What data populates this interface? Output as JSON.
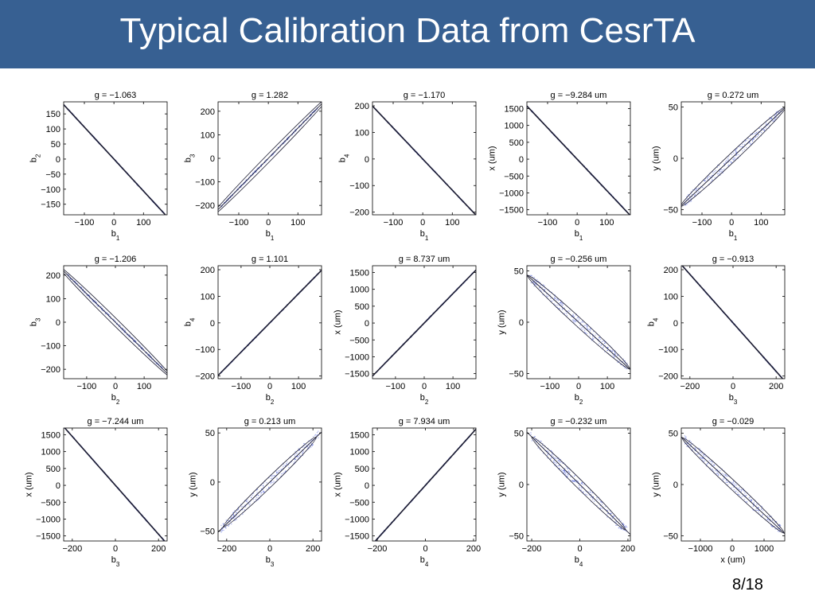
{
  "slide": {
    "title": "Typical Calibration Data from CesrTA",
    "page_number": "8/18",
    "title_bar_color": "#376092"
  },
  "chart_data": [
    {
      "type": "scatter",
      "title": "g = −1.063",
      "xlabel": "b",
      "xlabel_sub": "1",
      "ylabel": "b",
      "ylabel_sub": "2",
      "xlim": [
        -170,
        180
      ],
      "ylim": [
        -185,
        190
      ],
      "xticks": [
        -100,
        0,
        100
      ],
      "xtick_labels": [
        "−100",
        "0",
        "100"
      ],
      "yticks": [
        -150,
        -100,
        -50,
        0,
        50,
        100,
        150
      ],
      "ytick_labels": [
        "−150",
        "−100",
        "−50",
        "0",
        "50",
        "100",
        "150"
      ],
      "fit_line": {
        "x": [
          -170,
          180
        ],
        "y": [
          180.7,
          -191.3
        ]
      },
      "ellipse": null
    },
    {
      "type": "scatter",
      "title": "g = 1.282",
      "xlabel": "b",
      "xlabel_sub": "1",
      "ylabel": "b",
      "ylabel_sub": "3",
      "xlim": [
        -170,
        180
      ],
      "ylim": [
        -240,
        240
      ],
      "xticks": [
        -100,
        0,
        100
      ],
      "xtick_labels": [
        "−100",
        "0",
        "100"
      ],
      "yticks": [
        -200,
        -100,
        0,
        100,
        200
      ],
      "ytick_labels": [
        "−200",
        "−100",
        "0",
        "100",
        "200"
      ],
      "fit_line": {
        "x": [
          -170,
          180
        ],
        "y": [
          -218,
          231
        ]
      },
      "ellipse": {
        "rx": 205,
        "ry": 4
      }
    },
    {
      "type": "scatter",
      "title": "g = −1.170",
      "xlabel": "b",
      "xlabel_sub": "1",
      "ylabel": "b",
      "ylabel_sub": "4",
      "xlim": [
        -170,
        180
      ],
      "ylim": [
        -210,
        215
      ],
      "xticks": [
        -100,
        0,
        100
      ],
      "xtick_labels": [
        "−100",
        "0",
        "100"
      ],
      "yticks": [
        -200,
        -100,
        0,
        100,
        200
      ],
      "ytick_labels": [
        "−200",
        "−100",
        "0",
        "100",
        "200"
      ],
      "fit_line": {
        "x": [
          -170,
          180
        ],
        "y": [
          199,
          -211
        ]
      },
      "ellipse": null
    },
    {
      "type": "scatter",
      "title": "g = −9.284 um",
      "xlabel": "b",
      "xlabel_sub": "1",
      "ylabel": "x (um)",
      "ylabel_sub": "",
      "xlim": [
        -170,
        180
      ],
      "ylim": [
        -1650,
        1700
      ],
      "xticks": [
        -100,
        0,
        100
      ],
      "xtick_labels": [
        "−100",
        "0",
        "100"
      ],
      "yticks": [
        -1500,
        -1000,
        -500,
        0,
        500,
        1000,
        1500
      ],
      "ytick_labels": [
        "−1500",
        "−1000",
        "−500",
        "0",
        "500",
        "1000",
        "1500"
      ],
      "fit_line": {
        "x": [
          -170,
          180
        ],
        "y": [
          1578,
          -1671
        ]
      },
      "ellipse": null
    },
    {
      "type": "scatter",
      "title": "g = 0.272 um",
      "xlabel": "b",
      "xlabel_sub": "1",
      "ylabel": "y (um)",
      "ylabel_sub": "",
      "xlim": [
        -170,
        180
      ],
      "ylim": [
        -55,
        55
      ],
      "xticks": [
        -100,
        0,
        100
      ],
      "xtick_labels": [
        "−100",
        "0",
        "100"
      ],
      "yticks": [
        -50,
        0,
        50
      ],
      "ytick_labels": [
        "−50",
        "0",
        "50"
      ],
      "fit_line": {
        "x": [
          -170,
          180
        ],
        "y": [
          -46.2,
          49
        ]
      },
      "ellipse": {
        "rx": 178,
        "ry": 5.5
      }
    },
    {
      "type": "scatter",
      "title": "g = −1.206",
      "xlabel": "b",
      "xlabel_sub": "2",
      "ylabel": "b",
      "ylabel_sub": "3",
      "xlim": [
        -180,
        180
      ],
      "ylim": [
        -240,
        240
      ],
      "xticks": [
        -100,
        0,
        100
      ],
      "xtick_labels": [
        "−100",
        "0",
        "100"
      ],
      "yticks": [
        -200,
        -100,
        0,
        100,
        200
      ],
      "ytick_labels": [
        "−200",
        "−100",
        "0",
        "100",
        "200"
      ],
      "fit_line": {
        "x": [
          -180,
          180
        ],
        "y": [
          217,
          -217
        ]
      },
      "ellipse": {
        "rx": 200,
        "ry": 5
      }
    },
    {
      "type": "scatter",
      "title": "g = 1.101",
      "xlabel": "b",
      "xlabel_sub": "2",
      "ylabel": "b",
      "ylabel_sub": "4",
      "xlim": [
        -180,
        180
      ],
      "ylim": [
        -210,
        215
      ],
      "xticks": [
        -100,
        0,
        100
      ],
      "xtick_labels": [
        "−100",
        "0",
        "100"
      ],
      "yticks": [
        -200,
        -100,
        0,
        100,
        200
      ],
      "ytick_labels": [
        "−200",
        "−100",
        "0",
        "100",
        "200"
      ],
      "fit_line": {
        "x": [
          -180,
          180
        ],
        "y": [
          -198,
          198
        ]
      },
      "ellipse": null
    },
    {
      "type": "scatter",
      "title": "g = 8.737 um",
      "xlabel": "b",
      "xlabel_sub": "2",
      "ylabel": "x (um)",
      "ylabel_sub": "",
      "xlim": [
        -180,
        180
      ],
      "ylim": [
        -1650,
        1700
      ],
      "xticks": [
        -100,
        0,
        100
      ],
      "xtick_labels": [
        "−100",
        "0",
        "100"
      ],
      "yticks": [
        -1500,
        -1000,
        -500,
        0,
        500,
        1000,
        1500
      ],
      "ytick_labels": [
        "−1500",
        "−1000",
        "−500",
        "0",
        "500",
        "1000",
        "1500"
      ],
      "fit_line": {
        "x": [
          -180,
          180
        ],
        "y": [
          -1573,
          1573
        ]
      },
      "ellipse": null
    },
    {
      "type": "scatter",
      "title": "g = −0.256 um",
      "xlabel": "b",
      "xlabel_sub": "2",
      "ylabel": "y (um)",
      "ylabel_sub": "",
      "xlim": [
        -180,
        180
      ],
      "ylim": [
        -55,
        55
      ],
      "xticks": [
        -100,
        0,
        100
      ],
      "xtick_labels": [
        "−100",
        "0",
        "100"
      ],
      "yticks": [
        -50,
        0,
        50
      ],
      "ytick_labels": [
        "−50",
        "0",
        "50"
      ],
      "fit_line": {
        "x": [
          -180,
          180
        ],
        "y": [
          46.1,
          -46.1
        ]
      },
      "ellipse": {
        "rx": 178,
        "ry": 5.5
      }
    },
    {
      "type": "scatter",
      "title": "g = −0.913",
      "xlabel": "b",
      "xlabel_sub": "3",
      "ylabel": "b",
      "ylabel_sub": "4",
      "xlim": [
        -240,
        240
      ],
      "ylim": [
        -210,
        215
      ],
      "xticks": [
        -200,
        0,
        200
      ],
      "xtick_labels": [
        "−200",
        "0",
        "200"
      ],
      "yticks": [
        -200,
        -100,
        0,
        100,
        200
      ],
      "ytick_labels": [
        "−200",
        "−100",
        "0",
        "100",
        "200"
      ],
      "fit_line": {
        "x": [
          -240,
          240
        ],
        "y": [
          219,
          -219
        ]
      },
      "ellipse": null
    },
    {
      "type": "scatter",
      "title": "g = −7.244 um",
      "xlabel": "b",
      "xlabel_sub": "3",
      "ylabel": "x (um)",
      "ylabel_sub": "",
      "xlim": [
        -240,
        240
      ],
      "ylim": [
        -1650,
        1700
      ],
      "xticks": [
        -200,
        0,
        200
      ],
      "xtick_labels": [
        "−200",
        "0",
        "200"
      ],
      "yticks": [
        -1500,
        -1000,
        -500,
        0,
        500,
        1000,
        1500
      ],
      "ytick_labels": [
        "−1500",
        "−1000",
        "−500",
        "0",
        "500",
        "1000",
        "1500"
      ],
      "fit_line": {
        "x": [
          -240,
          240
        ],
        "y": [
          1739,
          -1739
        ]
      },
      "ellipse": null
    },
    {
      "type": "scatter",
      "title": "g = 0.213 um",
      "xlabel": "b",
      "xlabel_sub": "3",
      "ylabel": "y (um)",
      "ylabel_sub": "",
      "xlim": [
        -240,
        240
      ],
      "ylim": [
        -60,
        55
      ],
      "xticks": [
        -200,
        0,
        200
      ],
      "xtick_labels": [
        "−200",
        "0",
        "200"
      ],
      "yticks": [
        -50,
        0,
        50
      ],
      "ytick_labels": [
        "−50",
        "0",
        "50"
      ],
      "fit_line": {
        "x": [
          -240,
          240
        ],
        "y": [
          -51,
          51
        ]
      },
      "ellipse": {
        "rx": 215,
        "ry": 6
      }
    },
    {
      "type": "scatter",
      "title": "g = 7.934 um",
      "xlabel": "b",
      "xlabel_sub": "4",
      "ylabel": "x (um)",
      "ylabel_sub": "",
      "xlim": [
        -220,
        210
      ],
      "ylim": [
        -1650,
        1700
      ],
      "xticks": [
        -200,
        0,
        200
      ],
      "xtick_labels": [
        "−200",
        "0",
        "200"
      ],
      "yticks": [
        -1500,
        -1000,
        -500,
        0,
        500,
        1000,
        1500
      ],
      "ytick_labels": [
        "−1500",
        "−1000",
        "−500",
        "0",
        "500",
        "1000",
        "1500"
      ],
      "fit_line": {
        "x": [
          -220,
          210
        ],
        "y": [
          -1745,
          1666
        ]
      },
      "ellipse": null
    },
    {
      "type": "scatter",
      "title": "g = −0.232 um",
      "xlabel": "b",
      "xlabel_sub": "4",
      "ylabel": "y (um)",
      "ylabel_sub": "",
      "xlim": [
        -220,
        210
      ],
      "ylim": [
        -55,
        55
      ],
      "xticks": [
        -200,
        0,
        200
      ],
      "xtick_labels": [
        "−200",
        "0",
        "200"
      ],
      "yticks": [
        -50,
        0,
        50
      ],
      "ytick_labels": [
        "−50",
        "0",
        "50"
      ],
      "fit_line": {
        "x": [
          -220,
          210
        ],
        "y": [
          51,
          -48.7
        ]
      },
      "ellipse": {
        "rx": 195,
        "ry": 5.5
      }
    },
    {
      "type": "scatter",
      "title": "g = −0.029",
      "xlabel": "x (um)",
      "xlabel_sub": "",
      "ylabel": "y (um)",
      "ylabel_sub": "",
      "xlim": [
        -1600,
        1650
      ],
      "ylim": [
        -55,
        55
      ],
      "xticks": [
        -1000,
        0,
        1000
      ],
      "xtick_labels": [
        "−1000",
        "0",
        "1000"
      ],
      "yticks": [
        -50,
        0,
        50
      ],
      "ytick_labels": [
        "−50",
        "0",
        "50"
      ],
      "fit_line": {
        "x": [
          -1600,
          1650
        ],
        "y": [
          46.4,
          -47.9
        ]
      },
      "ellipse": {
        "rx": 1600,
        "ry": 5.5
      }
    }
  ]
}
